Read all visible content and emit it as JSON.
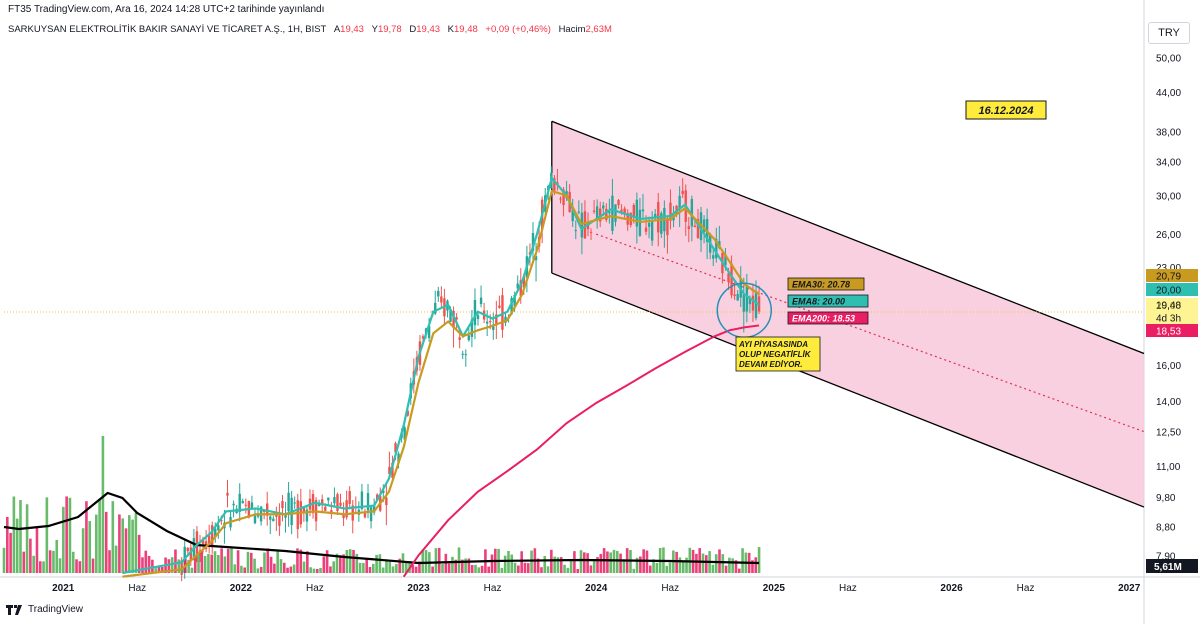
{
  "header": {
    "published": "FT35 TradingView.com, Ara 16, 2024 14:28 UTC+2 tarihinde yayınlandı",
    "symbol": "SARKUYSAN ELEKTROLİTİK BAKIR SANAYİ VE TİCARET A.Ş., 1H, BIST",
    "open_label": "A",
    "open": "19,43",
    "high_label": "Y",
    "high": "19,78",
    "low_label": "D",
    "low": "19,43",
    "close_label": "K",
    "close": "19,48",
    "change": "+0,09 (+0,46%)",
    "volume_label": "Hacim",
    "volume": "2,63M",
    "currency": "TRY"
  },
  "footer": {
    "brand": "TradingView"
  },
  "colors": {
    "up": "#26a69a",
    "up_vol": "#4caf50",
    "down": "#ef5350",
    "down_vol": "#e91e63",
    "ema8": "#2fbfb0",
    "ema30": "#c99a20",
    "ema200": "#e91e63",
    "channel_fill": "#f8c8da",
    "channel_line": "#000000",
    "mid_line": "#e0304f"
  },
  "chart_data": {
    "type": "line",
    "y_scale": "log",
    "ylim": [
      7.4,
      53
    ],
    "xlim": [
      "2020-09",
      "2027-02"
    ],
    "x_ticks": [
      "2021",
      "Haz",
      "2022",
      "Haz",
      "2023",
      "Haz",
      "2024",
      "Haz",
      "2025",
      "Haz",
      "2026",
      "Haz",
      "2027"
    ],
    "y_ticks": [
      "50,00",
      "44,00",
      "38,00",
      "34,00",
      "30,00",
      "26,00",
      "23,00",
      "20,00",
      "16,00",
      "14,00",
      "12,50",
      "11,00",
      "9,80",
      "8,80",
      "7,90"
    ],
    "price_tags": [
      {
        "label": "20,79",
        "color": "#c99a20"
      },
      {
        "label": "20,00",
        "color": "#2fbfb0"
      },
      {
        "label": "19,48",
        "color": "#ffffff"
      },
      {
        "label": "4d 3h",
        "color": "#ffffff"
      },
      {
        "label": "18,53",
        "color": "#e91e63"
      }
    ],
    "volume_tag": "5,61M",
    "series": [
      {
        "name": "EMA8",
        "x": [
          "2021-05",
          "2021-09",
          "2021-10",
          "2021-11",
          "2021-12",
          "2022-02",
          "2022-04",
          "2022-06",
          "2022-08",
          "2022-10",
          "2022-11",
          "2022-12",
          "2023-01",
          "2023-02",
          "2023-03",
          "2023-04",
          "2023-05",
          "2023-06",
          "2023-07",
          "2023-08",
          "2023-09",
          "2023-10",
          "2023-11",
          "2023-12",
          "2024-02",
          "2024-04",
          "2024-06",
          "2024-07",
          "2024-09",
          "2024-10",
          "2024-11",
          "2024-12"
        ],
        "y": [
          7.4,
          7.7,
          8.2,
          8.6,
          9.3,
          9.4,
          9.2,
          9.6,
          9.4,
          9.5,
          10.5,
          12.8,
          16.5,
          19.5,
          20.0,
          17.8,
          19.5,
          19.0,
          19.5,
          21.8,
          26.0,
          32.0,
          30.0,
          26.5,
          28.5,
          27.5,
          27.8,
          29.0,
          24.5,
          22.5,
          20.8,
          20.0
        ]
      },
      {
        "name": "EMA30",
        "x": [
          "2021-05",
          "2021-09",
          "2021-10",
          "2021-11",
          "2021-12",
          "2022-02",
          "2022-04",
          "2022-06",
          "2022-08",
          "2022-10",
          "2022-11",
          "2022-12",
          "2023-01",
          "2023-02",
          "2023-03",
          "2023-04",
          "2023-05",
          "2023-06",
          "2023-07",
          "2023-08",
          "2023-09",
          "2023-10",
          "2023-11",
          "2023-12",
          "2024-02",
          "2024-04",
          "2024-06",
          "2024-07",
          "2024-09",
          "2024-10",
          "2024-11",
          "2024-12"
        ],
        "y": [
          7.3,
          7.5,
          7.9,
          8.3,
          8.9,
          9.2,
          9.2,
          9.3,
          9.2,
          9.3,
          10.0,
          11.8,
          15.0,
          18.0,
          18.8,
          17.8,
          18.2,
          18.5,
          18.9,
          20.8,
          24.5,
          30.5,
          30.0,
          27.0,
          27.8,
          27.2,
          27.5,
          28.6,
          25.5,
          23.5,
          21.6,
          20.8
        ]
      },
      {
        "name": "EMA200",
        "x": [
          "2022-12",
          "2023-01",
          "2023-03",
          "2023-05",
          "2023-07",
          "2023-09",
          "2023-11",
          "2024-01",
          "2024-03",
          "2024-05",
          "2024-07",
          "2024-09",
          "2024-10",
          "2024-11",
          "2024-12"
        ],
        "y": [
          7.3,
          7.9,
          9.0,
          10.0,
          10.8,
          11.7,
          12.9,
          13.9,
          14.8,
          15.8,
          16.8,
          17.8,
          18.2,
          18.4,
          18.53
        ]
      },
      {
        "name": "Volume MA",
        "x": [
          "2020-09",
          "2020-10",
          "2020-12",
          "2021-02",
          "2021-03",
          "2021-04",
          "2021-05",
          "2021-06",
          "2021-08",
          "2021-10",
          "2022-01",
          "2022-04",
          "2022-08",
          "2023-01",
          "2023-06",
          "2023-12",
          "2024-06",
          "2024-12"
        ],
        "y": [
          0.46,
          0.44,
          0.47,
          0.56,
          0.68,
          0.8,
          0.75,
          0.6,
          0.42,
          0.28,
          0.25,
          0.22,
          0.16,
          0.1,
          0.12,
          0.13,
          0.12,
          0.1
        ]
      }
    ],
    "channel": {
      "upper": {
        "x": [
          "2023-10",
          "2027-02"
        ],
        "y": [
          39.5,
          16.7
        ]
      },
      "lower": {
        "x": [
          "2023-10",
          "2027-02"
        ],
        "y": [
          22.5,
          9.45
        ]
      },
      "midline": {
        "x": [
          "2024-01",
          "2027-02"
        ],
        "y": [
          26.0,
          12.5
        ]
      }
    },
    "annotations": {
      "date_label": "16.12.2024",
      "ema30_label": "EMA30: 20.78",
      "ema8_label": "EMA8: 20.00",
      "ema200_label": "EMA200: 18.53",
      "note_line1": "AYI PİYASASINDA",
      "note_line2": "OLUP NEGATİFLİK",
      "note_line3": "DEVAM EDİYOR."
    }
  }
}
